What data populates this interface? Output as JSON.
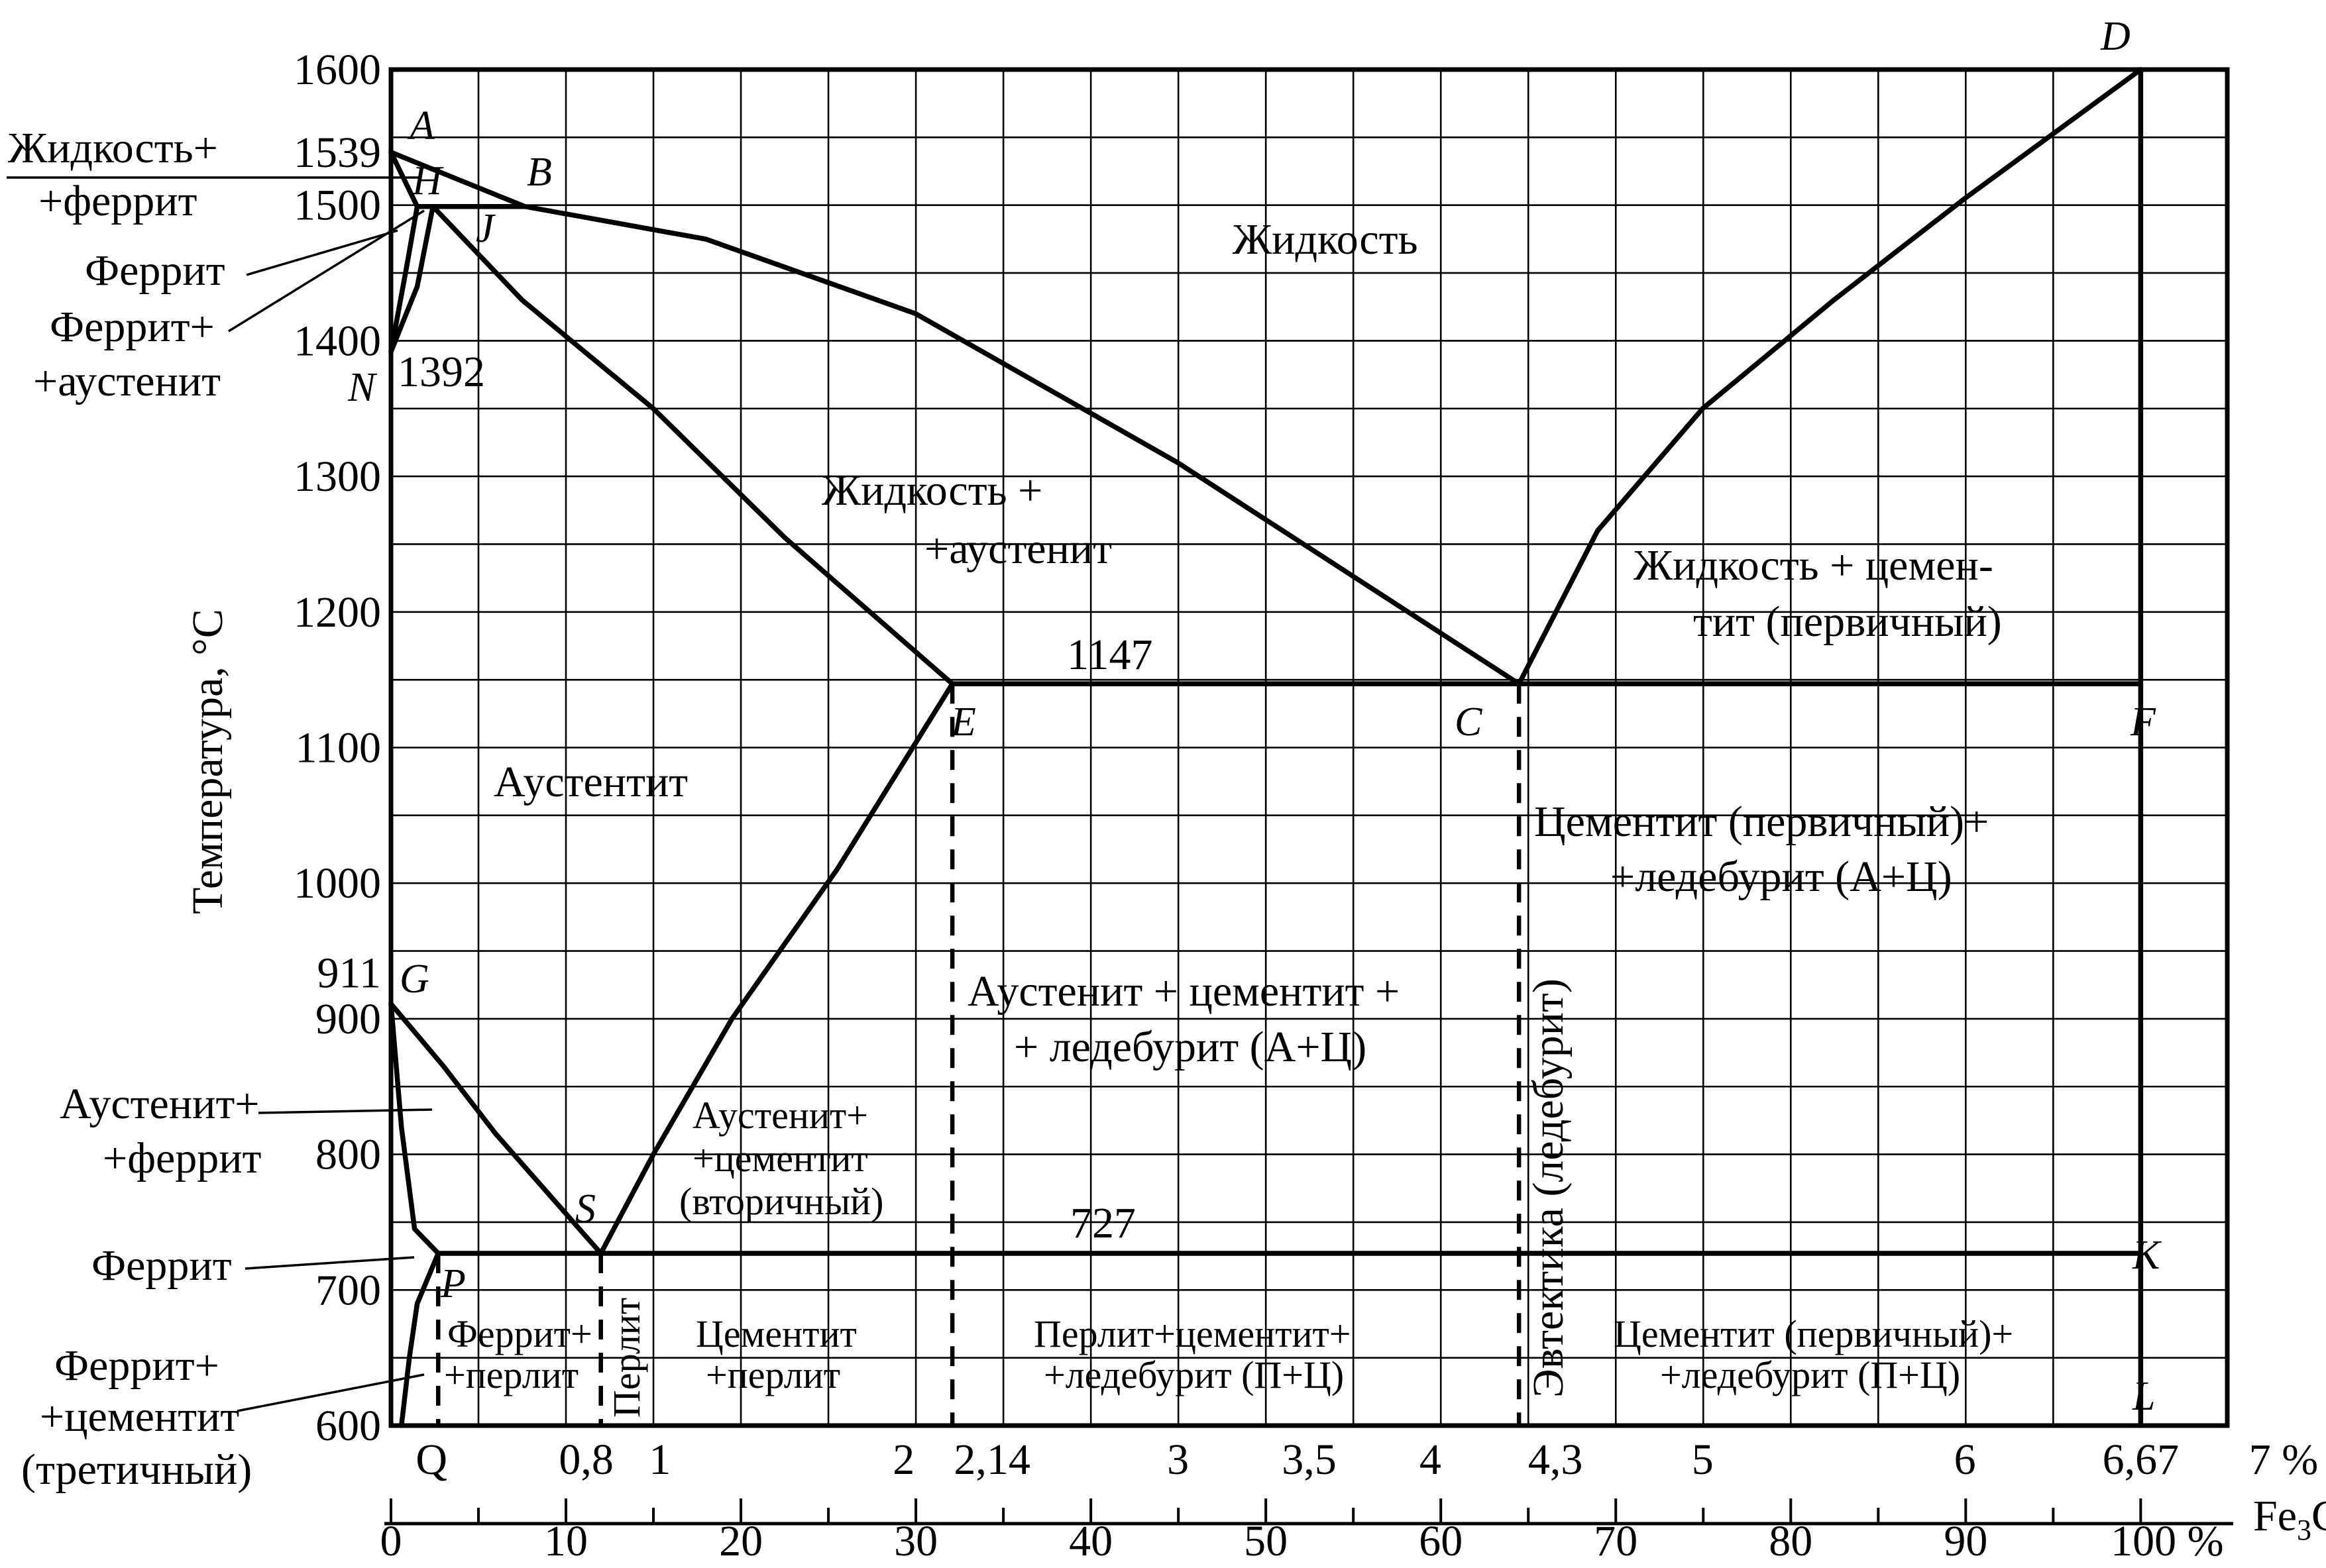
{
  "chart_data": {
    "type": "diagram",
    "ylabel": "Температура, °С",
    "xlabel_cem": "Fe",
    "xlabel_cem_sub": "3",
    "xlabel_cem_tail": "C",
    "ylim": [
      600,
      1600
    ],
    "xlim_carbon": [
      0,
      7
    ],
    "xlim_cementite": [
      0,
      100
    ],
    "y_ticks": [
      "600",
      "700",
      "800",
      "900",
      "1000",
      "1100",
      "1200",
      "1300",
      "1400",
      "1500",
      "1600"
    ],
    "y_extra": [
      "1539",
      "911"
    ],
    "carbon_ticks": [
      "Q",
      "0,8",
      "1",
      "2",
      "2,14",
      "3",
      "3,5",
      "4",
      "4,3",
      "5",
      "6",
      "6,67",
      "7 %"
    ],
    "cementite_ticks": [
      "0",
      "10",
      "20",
      "30",
      "40",
      "50",
      "60",
      "70",
      "80",
      "90",
      "100 %"
    ],
    "isotherm_labels": [
      "1392",
      "1147",
      "727"
    ],
    "points": {
      "A": "A",
      "H": "H",
      "B": "B",
      "J": "J",
      "N": "N",
      "D": "D",
      "E": "E",
      "C": "C",
      "F": "F",
      "G": "G",
      "S": "S",
      "P": "P",
      "K": "K",
      "L": "L"
    },
    "regions": {
      "liquid": "Жидкость",
      "liq_aus_1": "Жидкость +",
      "liq_aus_2": "+аустенит",
      "liq_cem_1": "Жидкость + цемен-",
      "liq_cem_2": "тит (первичный)",
      "austenite": "Аустентит",
      "cem_led_1": "Цементит (первичный)+",
      "cem_led_2": "+ледебурит (А+Ц)",
      "aus_cem_led_1": "Аустенит + цементит +",
      "aus_cem_led_2": "+ ледебурит (А+Ц)",
      "eutectic": "Эвтектика (ледебурит)",
      "aus_cem2_1": "Аустенит+",
      "aus_cem2_2": "+цементит",
      "aus_cem2_3": "(вторичный)",
      "fer_perl_1": "Феррит+",
      "fer_perl_2": "+перлит",
      "perlite": "Перлит",
      "cem_perl_1": "Цементит",
      "cem_perl_2": "+перлит",
      "perl_cem_led_1": "Перлит+цементит+",
      "perl_cem_led_2": "+ледебурит (П+Ц)",
      "cem1_led_1": "Цементит (первичный)+",
      "cem1_led_2": "+ледебурит (П+Ц)"
    },
    "side_labels": {
      "liq_fer_1": "Жидкость+",
      "liq_fer_2": "+феррит",
      "ferrite_top": "Феррит",
      "fer_aus_1": "Феррит+",
      "fer_aus_2": "+аустенит",
      "aus_fer_1": "Аустенит+",
      "aus_fer_2": "+феррит",
      "ferrite_low": "Феррит",
      "fer_cem3_1": "Феррит+",
      "fer_cem3_2": "+цементит",
      "fer_cem3_3": "(третичный)"
    },
    "curves": {
      "AB": [
        [
          0,
          1539
        ],
        [
          0.51,
          1499
        ]
      ],
      "BC": [
        [
          0.51,
          1499
        ],
        [
          1.2,
          1475
        ],
        [
          2.0,
          1420
        ],
        [
          3.0,
          1310
        ],
        [
          4.3,
          1147
        ]
      ],
      "CD": [
        [
          4.3,
          1147
        ],
        [
          4.6,
          1260
        ],
        [
          5.0,
          1350
        ],
        [
          5.5,
          1430
        ],
        [
          6.0,
          1505
        ],
        [
          6.67,
          1600
        ]
      ],
      "AH": [
        [
          0,
          1539
        ],
        [
          0.1,
          1499
        ]
      ],
      "HJB": [
        [
          0.1,
          1499
        ],
        [
          0.51,
          1499
        ]
      ],
      "JE": [
        [
          0.16,
          1499
        ],
        [
          0.5,
          1430
        ],
        [
          1.0,
          1350
        ],
        [
          1.5,
          1255
        ],
        [
          2.14,
          1147
        ]
      ],
      "HN": [
        [
          0.1,
          1499
        ],
        [
          0.06,
          1455
        ],
        [
          0,
          1392
        ]
      ],
      "JN": [
        [
          0.16,
          1499
        ],
        [
          0.1,
          1440
        ],
        [
          0,
          1392
        ]
      ],
      "ECF": [
        [
          2.14,
          1147
        ],
        [
          6.67,
          1147
        ]
      ],
      "GS": [
        [
          0,
          911
        ],
        [
          0.2,
          865
        ],
        [
          0.4,
          815
        ],
        [
          0.8,
          727
        ]
      ],
      "SE": [
        [
          0.8,
          727
        ],
        [
          1.0,
          800
        ],
        [
          1.3,
          900
        ],
        [
          1.7,
          1010
        ],
        [
          2.14,
          1147
        ]
      ],
      "GP": [
        [
          0,
          911
        ],
        [
          0.04,
          820
        ],
        [
          0.09,
          745
        ],
        [
          0.18,
          727
        ]
      ],
      "PQ": [
        [
          0.18,
          727
        ],
        [
          0.1,
          690
        ],
        [
          0.07,
          650
        ],
        [
          0.04,
          600
        ]
      ],
      "PSK": [
        [
          0.18,
          727
        ],
        [
          6.67,
          727
        ]
      ],
      "DL": [
        [
          6.67,
          1600
        ],
        [
          6.67,
          600
        ]
      ]
    },
    "dashed_verticals": [
      0.18,
      0.8,
      2.14,
      4.3
    ],
    "grid": true
  }
}
